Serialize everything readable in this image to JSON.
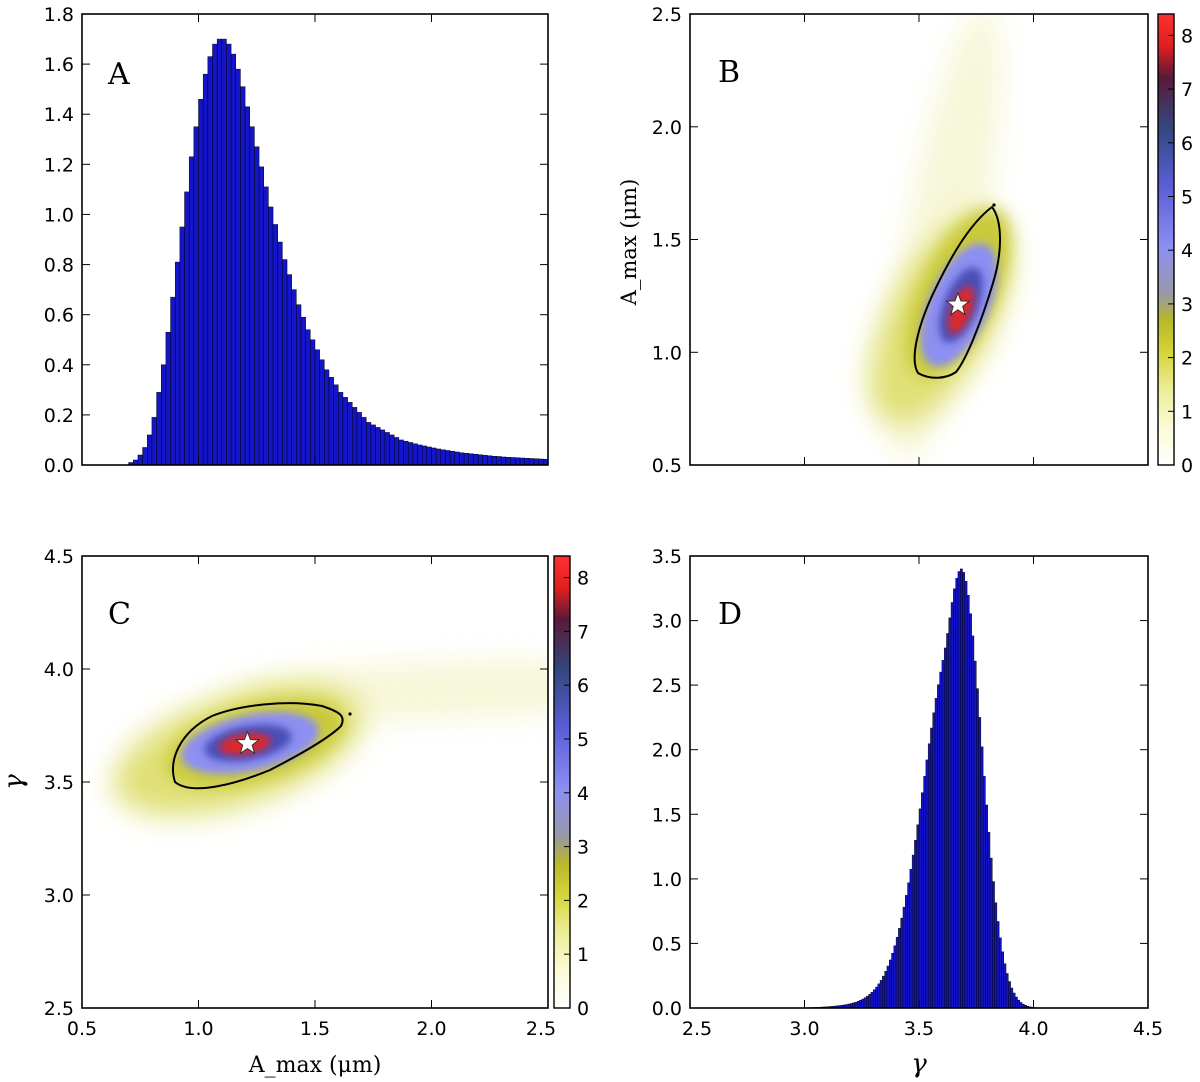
{
  "figure": {
    "panels": {
      "A": {
        "label": "A"
      },
      "B": {
        "label": "B",
        "ylabel": "A_max (μm)"
      },
      "C": {
        "label": "C",
        "xlabel": "A_max (μm)",
        "ylabel": "γ"
      },
      "D": {
        "label": "D",
        "xlabel": "γ"
      }
    }
  },
  "colors": {
    "hist_fill": "#1414c8",
    "hist_edge": "#000000",
    "colormap": [
      "#ffffff",
      "#fbfbd9",
      "#ecec96",
      "#d4d43a",
      "#b8b82a",
      "#9898a8",
      "#8d8ff2",
      "#5a5ed6",
      "#34467c",
      "#5a1a38",
      "#e02020",
      "#ff3030"
    ]
  },
  "chart_data": [
    {
      "panel": "A",
      "type": "bar",
      "xlim": [
        0.5,
        2.5
      ],
      "ylim": [
        0,
        1.8
      ],
      "yticks": [
        0.0,
        0.2,
        0.4,
        0.6,
        0.8,
        1.0,
        1.2,
        1.4,
        1.6,
        1.8
      ],
      "ytick_labels": [
        "0.0",
        "0.2",
        "0.4",
        "0.6",
        "0.8",
        "1.0",
        "1.2",
        "1.4",
        "1.6",
        "1.8"
      ],
      "xticks": [
        0.5,
        1.0,
        1.5,
        2.0,
        2.5
      ],
      "bin_width": 0.02,
      "x": [
        0.51,
        0.53,
        0.55,
        0.57,
        0.59,
        0.61,
        0.63,
        0.65,
        0.67,
        0.69,
        0.71,
        0.73,
        0.75,
        0.77,
        0.79,
        0.81,
        0.83,
        0.85,
        0.87,
        0.89,
        0.91,
        0.93,
        0.95,
        0.97,
        0.99,
        1.01,
        1.03,
        1.05,
        1.07,
        1.09,
        1.11,
        1.13,
        1.15,
        1.17,
        1.19,
        1.21,
        1.23,
        1.25,
        1.27,
        1.29,
        1.31,
        1.33,
        1.35,
        1.37,
        1.39,
        1.41,
        1.43,
        1.45,
        1.47,
        1.49,
        1.51,
        1.53,
        1.55,
        1.57,
        1.59,
        1.61,
        1.63,
        1.65,
        1.67,
        1.69,
        1.71,
        1.73,
        1.75,
        1.77,
        1.79,
        1.81,
        1.83,
        1.85,
        1.87,
        1.89,
        1.91,
        1.93,
        1.95,
        1.97,
        1.99,
        2.01,
        2.03,
        2.05,
        2.07,
        2.09,
        2.11,
        2.13,
        2.15,
        2.17,
        2.19,
        2.21,
        2.23,
        2.25,
        2.27,
        2.29,
        2.31,
        2.33,
        2.35,
        2.37,
        2.39,
        2.41,
        2.43,
        2.45,
        2.47,
        2.49
      ],
      "values": [
        0.0,
        0.0,
        0.0,
        0.0,
        0.0,
        0.0,
        0.0,
        0.0,
        0.0,
        0.0,
        0.01,
        0.02,
        0.04,
        0.07,
        0.12,
        0.19,
        0.29,
        0.4,
        0.53,
        0.67,
        0.81,
        0.95,
        1.09,
        1.23,
        1.35,
        1.46,
        1.56,
        1.63,
        1.68,
        1.7,
        1.7,
        1.68,
        1.64,
        1.58,
        1.51,
        1.43,
        1.35,
        1.27,
        1.19,
        1.11,
        1.03,
        0.96,
        0.89,
        0.82,
        0.76,
        0.7,
        0.64,
        0.59,
        0.54,
        0.5,
        0.46,
        0.42,
        0.38,
        0.35,
        0.32,
        0.29,
        0.27,
        0.25,
        0.23,
        0.21,
        0.19,
        0.17,
        0.16,
        0.15,
        0.14,
        0.13,
        0.12,
        0.11,
        0.1,
        0.095,
        0.09,
        0.085,
        0.08,
        0.076,
        0.072,
        0.068,
        0.064,
        0.061,
        0.058,
        0.055,
        0.052,
        0.049,
        0.047,
        0.045,
        0.043,
        0.041,
        0.039,
        0.037,
        0.035,
        0.034,
        0.032,
        0.031,
        0.03,
        0.029,
        0.028,
        0.027,
        0.026,
        0.025,
        0.024,
        0.023
      ]
    },
    {
      "panel": "B",
      "type": "heatmap",
      "xlim": [
        2.5,
        4.5
      ],
      "ylim": [
        0.5,
        2.5
      ],
      "yticks": [
        0.5,
        1.0,
        1.5,
        2.0,
        2.5
      ],
      "ytick_labels": [
        "0.5",
        "1.0",
        "1.5",
        "2.0",
        "2.5"
      ],
      "xticks": [
        3.0,
        3.5,
        4.0
      ],
      "colorbar": {
        "range": [
          0,
          8.4
        ],
        "ticks": [
          0,
          1,
          2,
          3,
          4,
          5,
          6,
          7,
          8
        ],
        "labels": [
          "0",
          "1",
          "2",
          "3",
          "4",
          "5",
          "6",
          "7",
          "8"
        ]
      },
      "peak": {
        "x": 3.67,
        "y": 1.21,
        "marker": "star"
      },
      "contour_level": 3.0
    },
    {
      "panel": "C",
      "type": "heatmap",
      "xlim": [
        0.5,
        2.5
      ],
      "ylim": [
        2.5,
        4.5
      ],
      "xticks": [
        0.5,
        1.0,
        1.5,
        2.0,
        2.5
      ],
      "xtick_labels": [
        "0.5",
        "1.0",
        "1.5",
        "2.0",
        "2.5"
      ],
      "yticks": [
        2.5,
        3.0,
        3.5,
        4.0,
        4.5
      ],
      "ytick_labels": [
        "2.5",
        "3.0",
        "3.5",
        "4.0",
        "4.5"
      ],
      "colorbar": {
        "range": [
          0,
          8.4
        ],
        "ticks": [
          0,
          1,
          2,
          3,
          4,
          5,
          6,
          7,
          8
        ],
        "labels": [
          "0",
          "1",
          "2",
          "3",
          "4",
          "5",
          "6",
          "7",
          "8"
        ]
      },
      "peak": {
        "x": 1.21,
        "y": 3.67,
        "marker": "star"
      },
      "contour_level": 3.0
    },
    {
      "panel": "D",
      "type": "bar",
      "xlim": [
        2.5,
        4.5
      ],
      "ylim": [
        0,
        3.5
      ],
      "xticks": [
        2.5,
        3.0,
        3.5,
        4.0,
        4.5
      ],
      "xtick_labels": [
        "2.5",
        "3.0",
        "3.5",
        "4.0",
        "4.5"
      ],
      "yticks": [
        0.0,
        0.5,
        1.0,
        1.5,
        2.0,
        2.5,
        3.0,
        3.5
      ],
      "ytick_labels": [
        "0.0",
        "0.5",
        "1.0",
        "1.5",
        "2.0",
        "2.5",
        "3.0",
        "3.5"
      ],
      "bin_width": 0.01,
      "x": [
        3.005,
        3.015,
        3.025,
        3.035,
        3.045,
        3.055,
        3.065,
        3.075,
        3.085,
        3.095,
        3.105,
        3.115,
        3.125,
        3.135,
        3.145,
        3.155,
        3.165,
        3.175,
        3.185,
        3.195,
        3.205,
        3.215,
        3.225,
        3.235,
        3.245,
        3.255,
        3.265,
        3.275,
        3.285,
        3.295,
        3.305,
        3.315,
        3.325,
        3.335,
        3.345,
        3.355,
        3.365,
        3.375,
        3.385,
        3.395,
        3.405,
        3.415,
        3.425,
        3.435,
        3.445,
        3.455,
        3.465,
        3.475,
        3.485,
        3.495,
        3.505,
        3.515,
        3.525,
        3.535,
        3.545,
        3.555,
        3.565,
        3.575,
        3.585,
        3.595,
        3.605,
        3.615,
        3.625,
        3.635,
        3.645,
        3.655,
        3.665,
        3.675,
        3.685,
        3.695,
        3.705,
        3.715,
        3.725,
        3.735,
        3.745,
        3.755,
        3.765,
        3.775,
        3.785,
        3.795,
        3.805,
        3.815,
        3.825,
        3.835,
        3.845,
        3.855,
        3.865,
        3.875,
        3.885,
        3.895,
        3.905,
        3.915,
        3.925,
        3.935,
        3.945,
        3.955,
        3.965,
        3.975,
        3.985,
        3.995,
        4.005,
        4.015,
        4.025,
        4.035,
        4.045,
        4.055,
        4.065,
        4.075,
        4.085,
        4.095
      ],
      "values": [
        0.002,
        0.003,
        0.003,
        0.004,
        0.004,
        0.005,
        0.006,
        0.007,
        0.008,
        0.009,
        0.01,
        0.012,
        0.013,
        0.015,
        0.017,
        0.019,
        0.021,
        0.024,
        0.027,
        0.031,
        0.035,
        0.04,
        0.045,
        0.052,
        0.06,
        0.069,
        0.08,
        0.092,
        0.106,
        0.122,
        0.141,
        0.162,
        0.187,
        0.215,
        0.247,
        0.284,
        0.325,
        0.372,
        0.424,
        0.482,
        0.547,
        0.618,
        0.696,
        0.781,
        0.872,
        0.97,
        1.074,
        1.184,
        1.299,
        1.419,
        1.542,
        1.667,
        1.794,
        1.921,
        2.046,
        2.168,
        2.286,
        2.398,
        2.503,
        2.601,
        2.692,
        2.788,
        2.9,
        3.021,
        3.14,
        3.246,
        3.327,
        3.38,
        3.4,
        3.373,
        3.304,
        3.196,
        3.053,
        2.881,
        2.686,
        2.473,
        2.25,
        2.022,
        1.794,
        1.572,
        1.36,
        1.161,
        0.979,
        0.815,
        0.67,
        0.543,
        0.435,
        0.343,
        0.267,
        0.205,
        0.155,
        0.116,
        0.085,
        0.061,
        0.043,
        0.03,
        0.021,
        0.014,
        0.009,
        0.006,
        0.004,
        0.003,
        0.002,
        0.001,
        0.001,
        0.001,
        0.0,
        0.0,
        0.0,
        0.0
      ]
    }
  ]
}
